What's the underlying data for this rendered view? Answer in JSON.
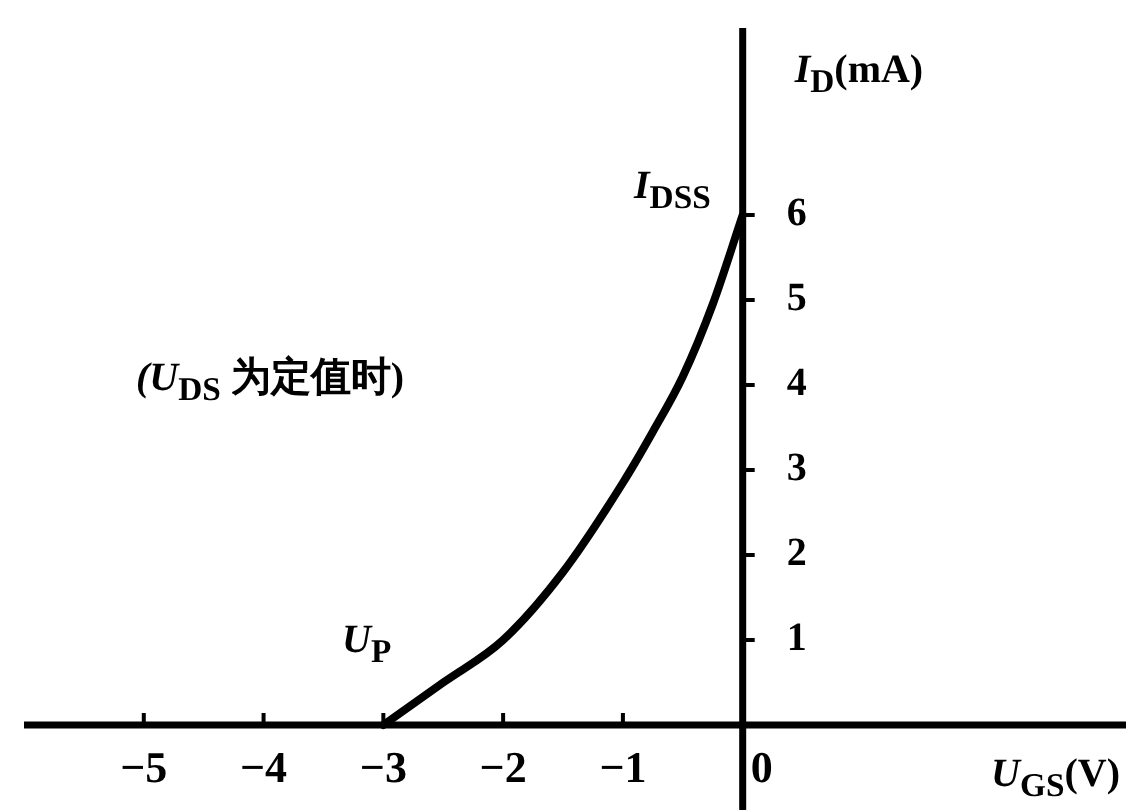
{
  "chart_data": {
    "type": "line",
    "xlabel": "U$_{GS}$(V)",
    "ylabel": "I$_{D}$(mA)",
    "x": [
      -3,
      -2.5,
      -2,
      -1.5,
      -1,
      -0.75,
      -0.5,
      -0.25,
      0
    ],
    "series": [
      {
        "color": "#000000",
        "values": [
          0,
          0.5,
          1,
          1.8,
          2.85,
          3.45,
          4.1,
          4.95,
          6
        ]
      }
    ],
    "xlim": [
      -6,
      3.2
    ],
    "ylim": [
      -1,
      8.2
    ],
    "xticks": [
      -5,
      -4,
      -3,
      -2,
      -1,
      0
    ],
    "yticks": [
      1,
      2,
      3,
      4,
      5,
      6
    ],
    "marker": "none",
    "line_style": "solid",
    "annotations": [
      {
        "text": "I$_{DSS}$",
        "x": 0,
        "y": 6
      },
      {
        "text": "U$_{P}$",
        "x": -3,
        "y": 0
      },
      "(U$_{DS}$ 为定值时)"
    ]
  }
}
